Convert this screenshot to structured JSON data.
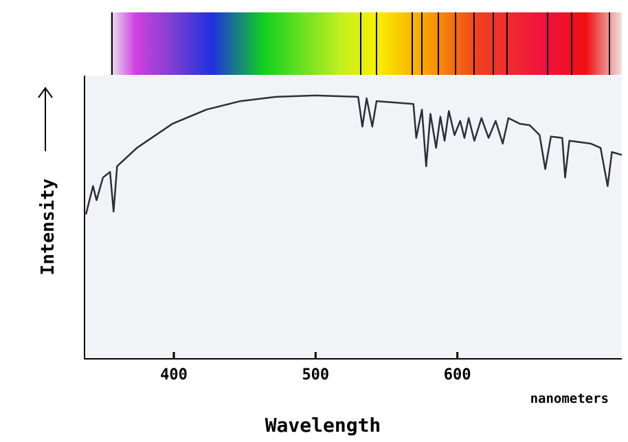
{
  "chart_data": {
    "type": "line",
    "x_label": "Wavelength",
    "y_label": "Intensity",
    "annotation": "nanometers",
    "xlim": [
      337,
      716
    ],
    "ylim": [
      0,
      100
    ],
    "xticks": [
      400,
      500,
      600
    ],
    "x": [
      338,
      343,
      345.5,
      350,
      355,
      357.5,
      360,
      374,
      399,
      423,
      447,
      472,
      500,
      530,
      533,
      536,
      540,
      543,
      569,
      571,
      575,
      578,
      581,
      585,
      588,
      591,
      594,
      598,
      602,
      605,
      608,
      612,
      617,
      622,
      627,
      632,
      636,
      644,
      651,
      658,
      662,
      666,
      674,
      676,
      679,
      694,
      701,
      706,
      709,
      716
    ],
    "series": [
      {
        "color": "#2a2f3a",
        "values": [
          51,
          61,
          56,
          64,
          66,
          52,
          68,
          74.5,
          83,
          88,
          91,
          92.5,
          93,
          92.5,
          82,
          92,
          82,
          91,
          90,
          78,
          88,
          68,
          86.5,
          74.5,
          85.5,
          77,
          87.5,
          79,
          84,
          78,
          85,
          77,
          85,
          78,
          84,
          76,
          85,
          83,
          82.5,
          79,
          67,
          78.5,
          78,
          64,
          77,
          76,
          74.5,
          61,
          73,
          72
        ]
      }
    ]
  }
}
